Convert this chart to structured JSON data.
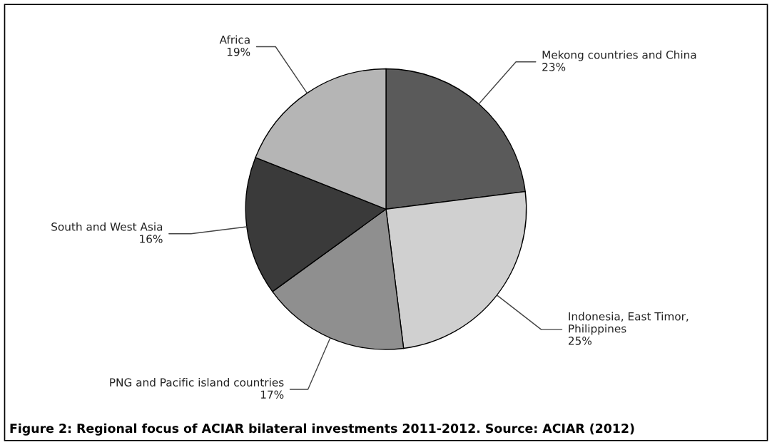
{
  "chart_data": {
    "type": "pie",
    "categories": [
      "Mekong countries and China",
      "Indonesia, East Timor,\nPhilippines",
      "PNG and Pacific island countries",
      "South and West Asia",
      "Africa"
    ],
    "values": [
      23,
      25,
      17,
      16,
      19
    ],
    "value_labels": [
      "23%",
      "25%",
      "17%",
      "16%",
      "19%"
    ],
    "colors": [
      "#5a5a5a",
      "#d0d0d0",
      "#8f8f8f",
      "#3a3a3a",
      "#b5b5b5"
    ],
    "annotations": [
      "Figure 2: Regional focus of ACIAR bilateral investments 2011-2012. Source: ACIAR (2012)"
    ]
  }
}
